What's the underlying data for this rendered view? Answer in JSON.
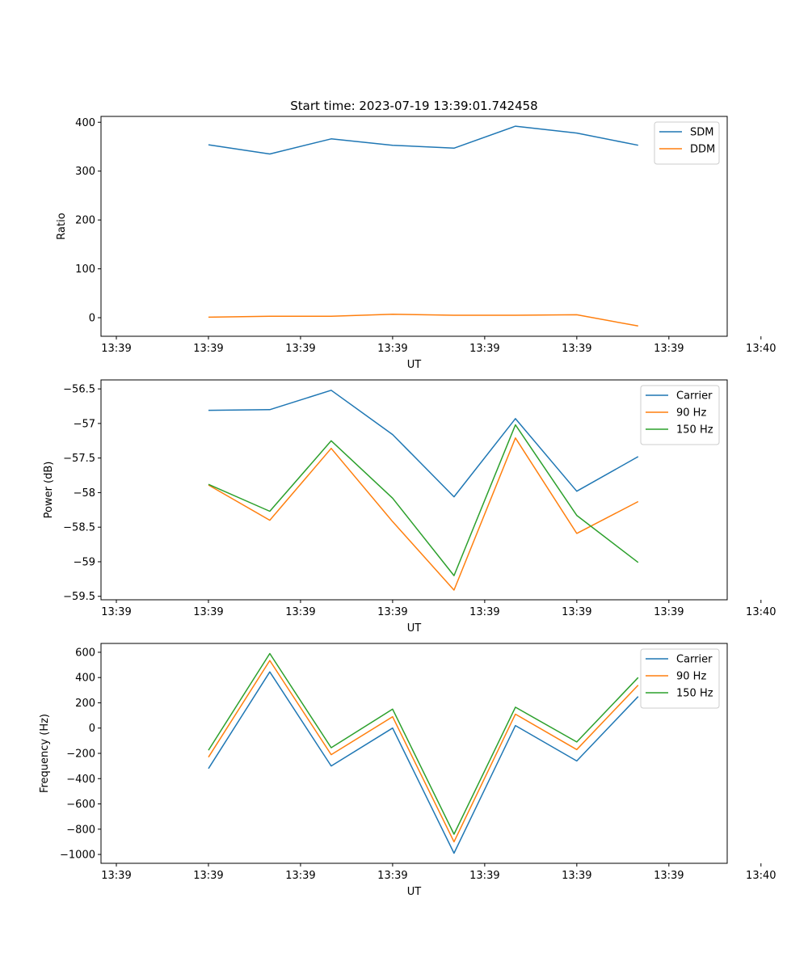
{
  "chart_data": [
    {
      "type": "line",
      "title": "Start time: 2023-07-19 13:39:01.742458",
      "xlabel": "UT",
      "ylabel": "Ratio",
      "xticklabels": [
        "13:39",
        "13:39",
        "13:39",
        "13:39",
        "13:39",
        "13:39",
        "13:39"
      ],
      "xticklabel_end": "13:40",
      "x": [
        1,
        2,
        3,
        4,
        5,
        6,
        7,
        8
      ],
      "xlim": [
        -0.75,
        9.45
      ],
      "xticks": [
        -0.5,
        1.0,
        2.5,
        4.0,
        5.5,
        7.0,
        8.5,
        10.0
      ],
      "ylim": [
        -38,
        412
      ],
      "yticks": [
        0,
        100,
        200,
        300,
        400
      ],
      "legend_position": "top-right",
      "series": [
        {
          "name": "SDM",
          "color": "#1f77b4",
          "values": [
            354,
            335,
            366,
            353,
            347,
            392,
            378,
            353
          ]
        },
        {
          "name": "DDM",
          "color": "#ff7f0e",
          "values": [
            1,
            3,
            3,
            7,
            5,
            5,
            6,
            -17
          ]
        }
      ]
    },
    {
      "type": "line",
      "title": "",
      "xlabel": "UT",
      "ylabel": "Power (dB)",
      "xticklabels": [
        "13:39",
        "13:39",
        "13:39",
        "13:39",
        "13:39",
        "13:39",
        "13:39"
      ],
      "xticklabel_end": "13:40",
      "x": [
        1,
        2,
        3,
        4,
        5,
        6,
        7,
        8
      ],
      "xlim": [
        -0.75,
        9.45
      ],
      "xticks": [
        -0.5,
        1.0,
        2.5,
        4.0,
        5.5,
        7.0,
        8.5,
        10.0
      ],
      "ylim": [
        -59.55,
        -56.37
      ],
      "yticks": [
        -59.5,
        -59.0,
        -58.5,
        -58.0,
        -57.5,
        -57.0,
        -56.5
      ],
      "legend_position": "top-right",
      "series": [
        {
          "name": "Carrier",
          "color": "#1f77b4",
          "values": [
            -56.81,
            -56.8,
            -56.52,
            -57.16,
            -58.06,
            -56.93,
            -57.98,
            -57.48
          ]
        },
        {
          "name": "90 Hz",
          "color": "#ff7f0e",
          "values": [
            -57.89,
            -58.4,
            -57.36,
            -58.42,
            -59.41,
            -57.21,
            -58.59,
            -58.13
          ]
        },
        {
          "name": "150 Hz",
          "color": "#2ca02c",
          "values": [
            -57.88,
            -58.27,
            -57.25,
            -58.08,
            -59.2,
            -57.02,
            -58.33,
            -59.01
          ]
        }
      ]
    },
    {
      "type": "line",
      "title": "",
      "xlabel": "UT",
      "ylabel": "Frequency (Hz)",
      "xticklabels": [
        "13:39",
        "13:39",
        "13:39",
        "13:39",
        "13:39",
        "13:39",
        "13:39"
      ],
      "xticklabel_end": "13:40",
      "x": [
        1,
        2,
        3,
        4,
        5,
        6,
        7,
        8
      ],
      "xlim": [
        -0.75,
        9.45
      ],
      "xticks": [
        -0.5,
        1.0,
        2.5,
        4.0,
        5.5,
        7.0,
        8.5,
        10.0
      ],
      "ylim": [
        -1070,
        670
      ],
      "yticks": [
        -1000,
        -800,
        -600,
        -400,
        -200,
        0,
        200,
        400,
        600
      ],
      "legend_position": "top-right",
      "series": [
        {
          "name": "Carrier",
          "color": "#1f77b4",
          "values": [
            -320,
            445,
            -300,
            0,
            -990,
            20,
            -260,
            250
          ]
        },
        {
          "name": "90 Hz",
          "color": "#ff7f0e",
          "values": [
            -230,
            535,
            -210,
            90,
            -900,
            110,
            -170,
            340
          ]
        },
        {
          "name": "150 Hz",
          "color": "#2ca02c",
          "values": [
            -175,
            590,
            -155,
            150,
            -840,
            165,
            -110,
            400
          ]
        }
      ]
    }
  ]
}
